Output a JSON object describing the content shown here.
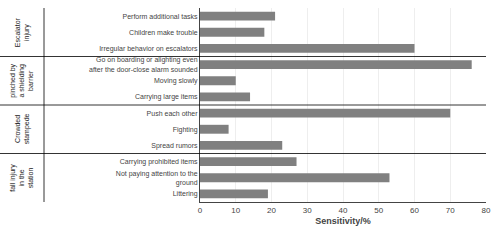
{
  "chart_data": {
    "type": "bar",
    "orientation": "horizontal",
    "categories": [
      "Perform additional tasks",
      "Children make trouble",
      "Irregular behavior on escalators",
      "Go on boarding or alighting even\nafter the door-close alarm sounded",
      "Moving slowly",
      "Carrying large items",
      "Push each other",
      "Fighting",
      "Spread rumors",
      "Carrying prohibited items",
      "Not paying attention to the\nground",
      "Littering"
    ],
    "values": [
      21,
      18,
      60,
      76,
      10,
      14,
      70,
      8,
      23,
      27,
      53,
      19
    ],
    "color": "#808080",
    "xlabel": "Sensitivity/%",
    "xlim": [
      0,
      80
    ],
    "xticks": [
      0,
      10,
      20,
      30,
      40,
      50,
      60,
      70,
      80
    ],
    "grid": true,
    "groups": [
      {
        "label": "Escalator\ninjury",
        "size": 3
      },
      {
        "label": "pinched by\na shielding\nbarrier",
        "size": 3
      },
      {
        "label": "Crowded\nstampede",
        "size": 3
      },
      {
        "label": "fall injury\nin the\nstation",
        "size": 3
      }
    ]
  }
}
